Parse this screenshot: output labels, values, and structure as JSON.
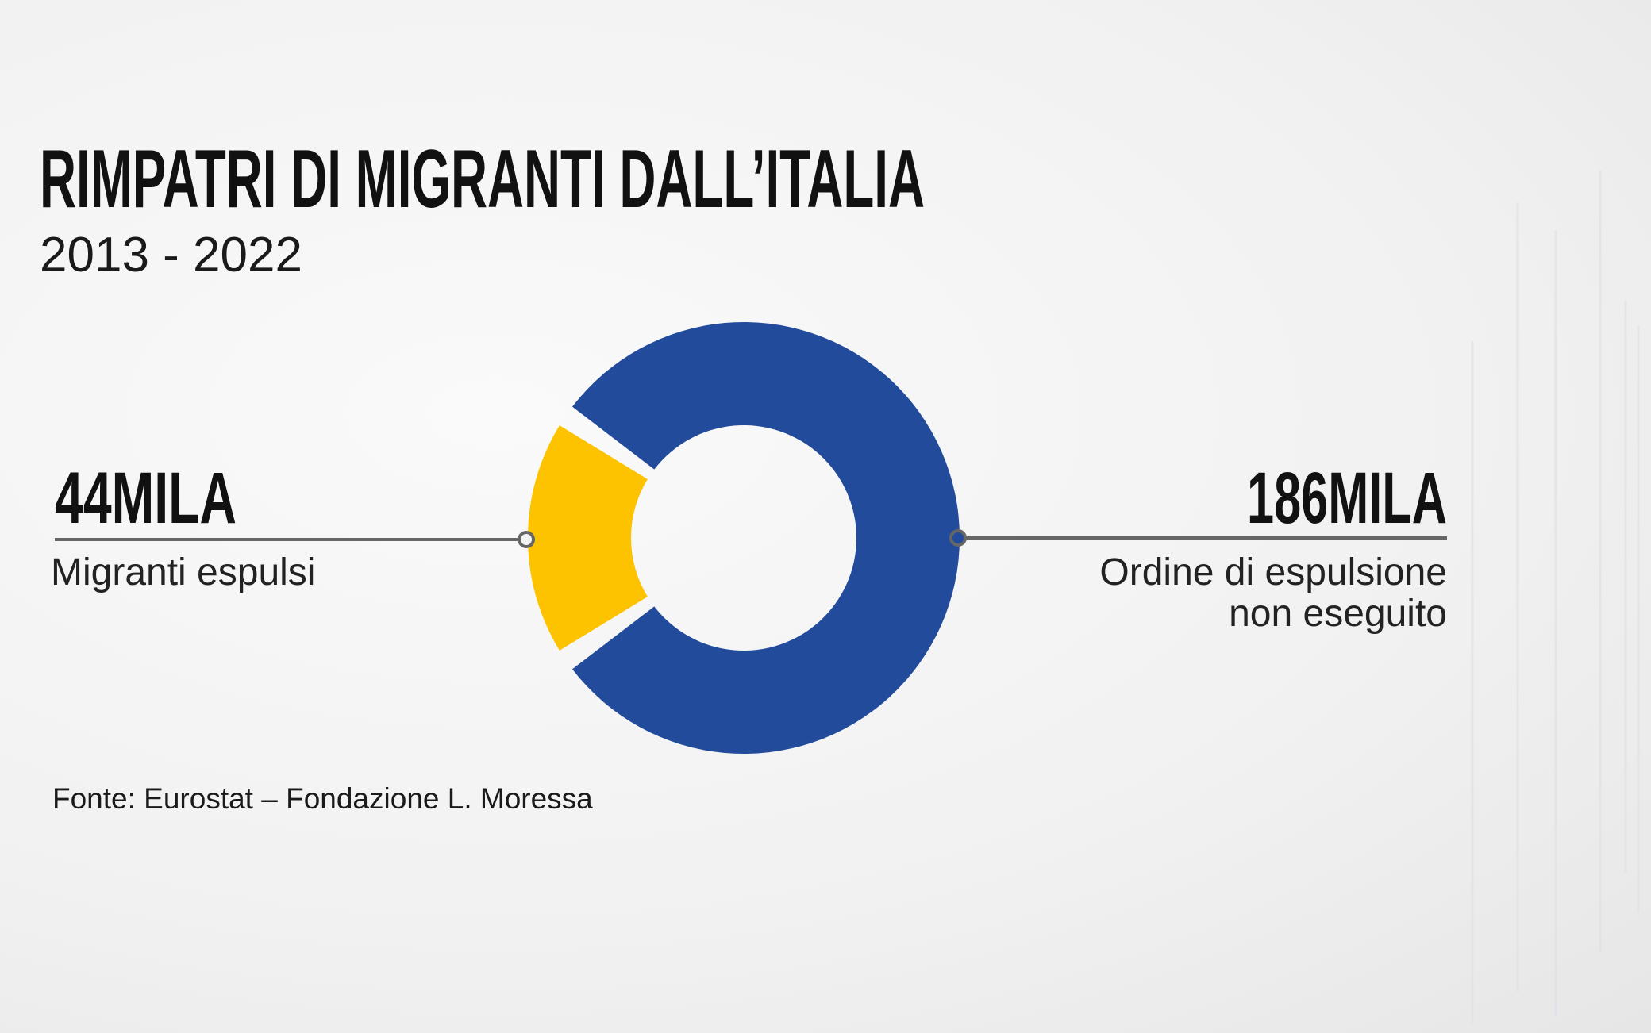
{
  "chart_data": {
    "type": "donut",
    "title": "RIMPATRI DI MIGRANTI DALL’ITALIA",
    "subtitle": "2013 - 2022",
    "categories": [
      "Migranti espulsi",
      "Ordine di espulsione non eseguito"
    ],
    "values": [
      44,
      186
    ],
    "value_labels": [
      "44MILA",
      "186MILA"
    ],
    "colors": [
      "#fdc300",
      "#234b9b"
    ],
    "source": "Fonte:  Eurostat – Fondazione L. Moressa"
  }
}
